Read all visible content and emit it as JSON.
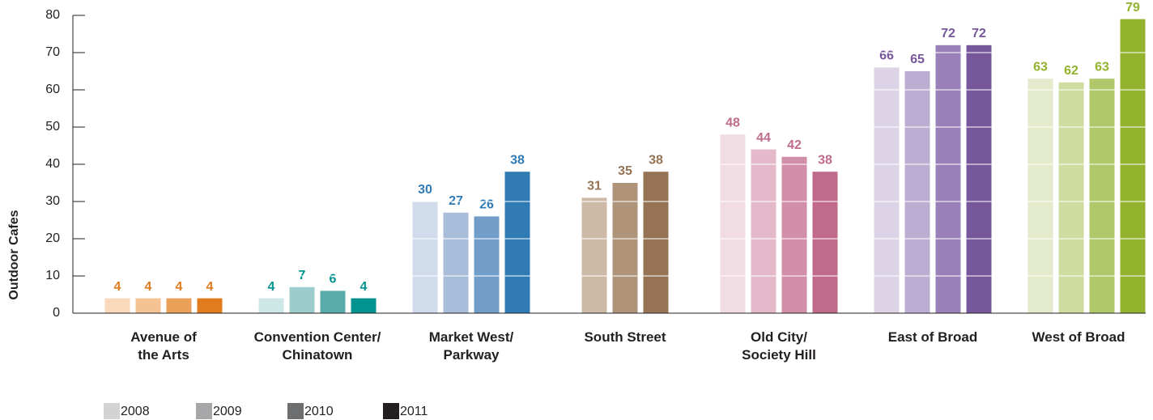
{
  "chart_data": {
    "type": "bar",
    "y_label": "Outdoor Cafes",
    "categories": [
      "Avenue of\nthe Arts",
      "Convention Center/\nChinatown",
      "Market West/\nParkway",
      "South Street",
      "Old City/\nSociety Hill",
      "East of Broad",
      "West of Broad"
    ],
    "series": [
      {
        "name": "2008",
        "color": "#d3d3d3",
        "values": [
          4,
          4,
          30,
          null,
          48,
          66,
          63
        ]
      },
      {
        "name": "2009",
        "color": "#a7a7a9",
        "values": [
          4,
          7,
          27,
          31,
          44,
          65,
          62
        ]
      },
      {
        "name": "2010",
        "color": "#6d6e70",
        "values": [
          4,
          6,
          26,
          35,
          42,
          72,
          63
        ]
      },
      {
        "name": "2011",
        "color": "#231f20",
        "values": [
          4,
          4,
          38,
          38,
          38,
          72,
          79
        ]
      }
    ],
    "category_colors": [
      [
        "#fbd9bd",
        "#f4c293",
        "#eba059",
        "#e07b1e"
      ],
      [
        "#cde6e6",
        "#9dcccc",
        "#5aacac",
        "#00938f"
      ],
      [
        "#d0dcec",
        "#a8bdda",
        "#719dc8",
        "#317bb5"
      ],
      [
        "#ccb9a6",
        "#ccb9a6",
        "#b09479",
        "#977356"
      ],
      [
        "#f2dce3",
        "#e4bacb",
        "#d18ea8",
        "#c06b8c"
      ],
      [
        "#dcd3e6",
        "#bcaed3",
        "#9a80b9",
        "#77579b"
      ],
      [
        "#e4ebcc",
        "#cfdc9f",
        "#b1c86a",
        "#93b22e"
      ]
    ],
    "ylim": [
      0,
      80
    ],
    "yticks": [
      0,
      10,
      20,
      30,
      40,
      50,
      60,
      70,
      80
    ],
    "grid": true
  }
}
